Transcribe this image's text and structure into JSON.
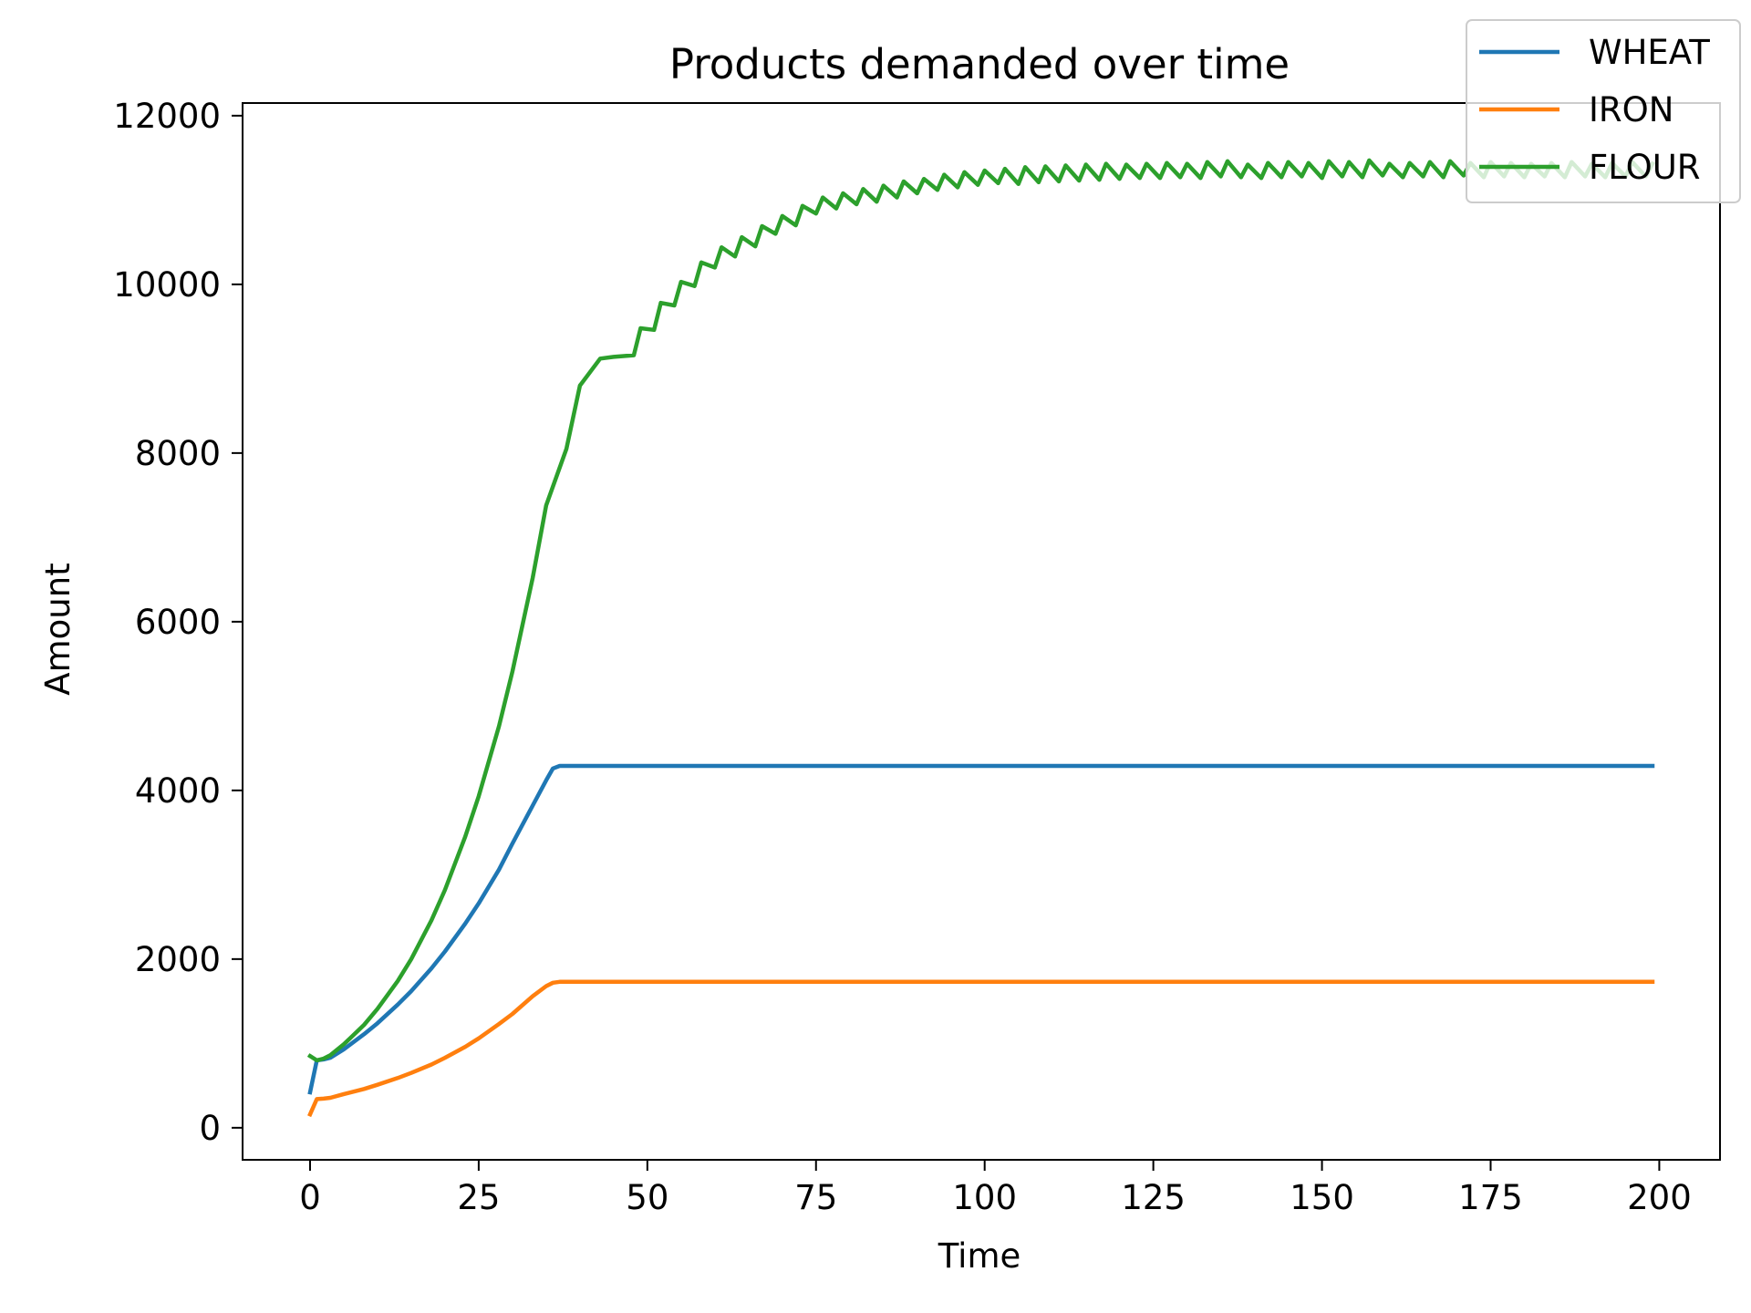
{
  "chart_data": {
    "type": "line",
    "title": "Products demanded over time",
    "xlabel": "Time",
    "ylabel": "Amount",
    "xlim": [
      -10,
      209
    ],
    "ylim": [
      -380,
      12150
    ],
    "xticks": [
      0,
      25,
      50,
      75,
      100,
      125,
      150,
      175,
      200
    ],
    "yticks": [
      0,
      2000,
      4000,
      6000,
      8000,
      10000,
      12000
    ],
    "grid": false,
    "legend_position": "top-right",
    "series": [
      {
        "name": "WHEAT",
        "color": "#1f77b4",
        "x": [
          0,
          1,
          2,
          3,
          5,
          8,
          10,
          13,
          15,
          18,
          20,
          23,
          25,
          28,
          30,
          33,
          35,
          36,
          37,
          40,
          60,
          80,
          100,
          120,
          140,
          160,
          180,
          199
        ],
        "y": [
          420,
          800,
          810,
          830,
          930,
          1110,
          1240,
          1460,
          1620,
          1890,
          2090,
          2420,
          2660,
          3060,
          3370,
          3820,
          4120,
          4260,
          4290,
          4290,
          4290,
          4290,
          4290,
          4290,
          4290,
          4290,
          4290,
          4290
        ]
      },
      {
        "name": "IRON",
        "color": "#ff7f0e",
        "x": [
          0,
          1,
          2,
          3,
          5,
          8,
          10,
          13,
          15,
          18,
          20,
          23,
          25,
          28,
          30,
          33,
          35,
          36,
          37,
          40,
          60,
          80,
          100,
          120,
          140,
          160,
          180,
          199
        ],
        "y": [
          160,
          340,
          345,
          355,
          400,
          460,
          510,
          590,
          650,
          750,
          830,
          960,
          1060,
          1230,
          1350,
          1560,
          1680,
          1720,
          1730,
          1730,
          1730,
          1730,
          1730,
          1730,
          1730,
          1730,
          1730,
          1730
        ]
      },
      {
        "name": "FLOUR",
        "color": "#2ca02c",
        "x": [
          0,
          1,
          2,
          3,
          5,
          8,
          10,
          13,
          15,
          18,
          20,
          23,
          25,
          28,
          30,
          33,
          35,
          38,
          40,
          43,
          45,
          48,
          49,
          51,
          52,
          54,
          55,
          57,
          58,
          60,
          61,
          63,
          64,
          66,
          67,
          69,
          70,
          72,
          73,
          75,
          76,
          78,
          79,
          81,
          82,
          84,
          85,
          87,
          88,
          90,
          91,
          93,
          94,
          96,
          97,
          99,
          100,
          102,
          103,
          105,
          106,
          108,
          109,
          111,
          112,
          114,
          115,
          117,
          118,
          120,
          121,
          123,
          124,
          126,
          127,
          129,
          130,
          132,
          133,
          135,
          136,
          138,
          139,
          141,
          142,
          144,
          145,
          147,
          148,
          150,
          151,
          153,
          154,
          156,
          157,
          159,
          160,
          162,
          163,
          165,
          166,
          168,
          169,
          171,
          172,
          174,
          175,
          177,
          178,
          180,
          181,
          183,
          184,
          186,
          187,
          189,
          190,
          192,
          193,
          195,
          196,
          198,
          199
        ],
        "y": [
          850,
          800,
          820,
          860,
          990,
          1220,
          1410,
          1740,
          2000,
          2460,
          2820,
          3450,
          3930,
          4760,
          5410,
          6520,
          7380,
          8050,
          8800,
          9120,
          9140,
          9160,
          9480,
          9460,
          9780,
          9750,
          10030,
          9980,
          10260,
          10200,
          10440,
          10330,
          10560,
          10450,
          10690,
          10600,
          10810,
          10700,
          10930,
          10840,
          11030,
          10900,
          11080,
          10950,
          11130,
          10980,
          11170,
          11030,
          11220,
          11080,
          11250,
          11120,
          11300,
          11150,
          11330,
          11180,
          11350,
          11200,
          11370,
          11190,
          11390,
          11210,
          11400,
          11220,
          11410,
          11230,
          11420,
          11240,
          11430,
          11250,
          11420,
          11260,
          11430,
          11260,
          11440,
          11270,
          11430,
          11260,
          11450,
          11280,
          11460,
          11270,
          11420,
          11260,
          11440,
          11270,
          11450,
          11280,
          11440,
          11260,
          11460,
          11280,
          11450,
          11270,
          11470,
          11290,
          11430,
          11270,
          11440,
          11280,
          11450,
          11270,
          11460,
          11290,
          11440,
          11270,
          11450,
          11280,
          11440,
          11270,
          11430,
          11280,
          11440,
          11270,
          11450,
          11280,
          11430,
          11270,
          11440,
          11280,
          11450,
          11280,
          11430
        ]
      }
    ]
  }
}
